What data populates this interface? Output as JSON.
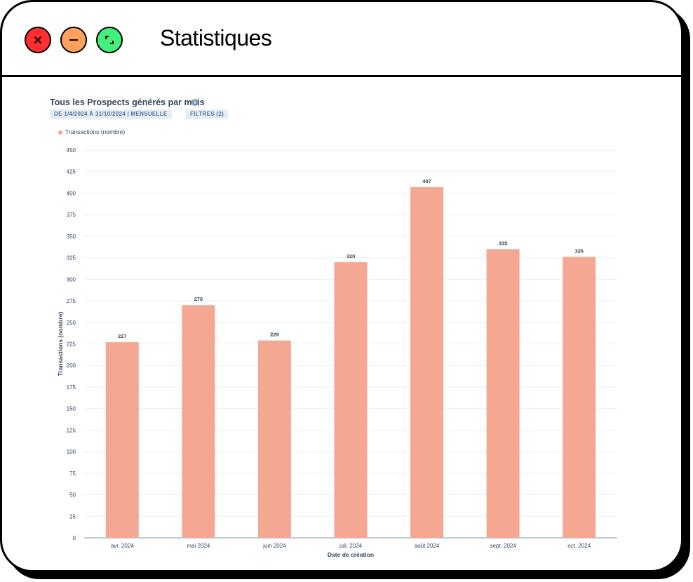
{
  "window": {
    "title": "Statistiques",
    "controls": {
      "close_glyph": "×",
      "minimize_glyph": "–",
      "maximize_glyph": ""
    }
  },
  "report": {
    "title": "Tous les Prospects générés par mois",
    "info_glyph": "i",
    "date_range_chip": "DE 1/4/2024 À 31/10/2024 | MENSUELLE",
    "filters_chip": "FILTRES (2)"
  },
  "chart_data": {
    "type": "bar",
    "legend": [
      "Transactions (nombre)"
    ],
    "legend_position": "top-left",
    "categories": [
      "avr. 2024",
      "mai 2024",
      "juin 2024",
      "juil. 2024",
      "août 2024",
      "sept. 2024",
      "oct. 2024"
    ],
    "series": [
      {
        "name": "Transactions (nombre)",
        "values": [
          227,
          270,
          229,
          320,
          407,
          335,
          326
        ],
        "color": "#f5a891"
      }
    ],
    "xlabel": "Date de création",
    "ylabel": "Transactions (nombre)",
    "ylim": [
      0,
      450
    ],
    "yticks": [
      0,
      25,
      50,
      75,
      100,
      125,
      150,
      175,
      200,
      225,
      250,
      275,
      300,
      325,
      350,
      375,
      400,
      425,
      450
    ],
    "grid": true
  }
}
